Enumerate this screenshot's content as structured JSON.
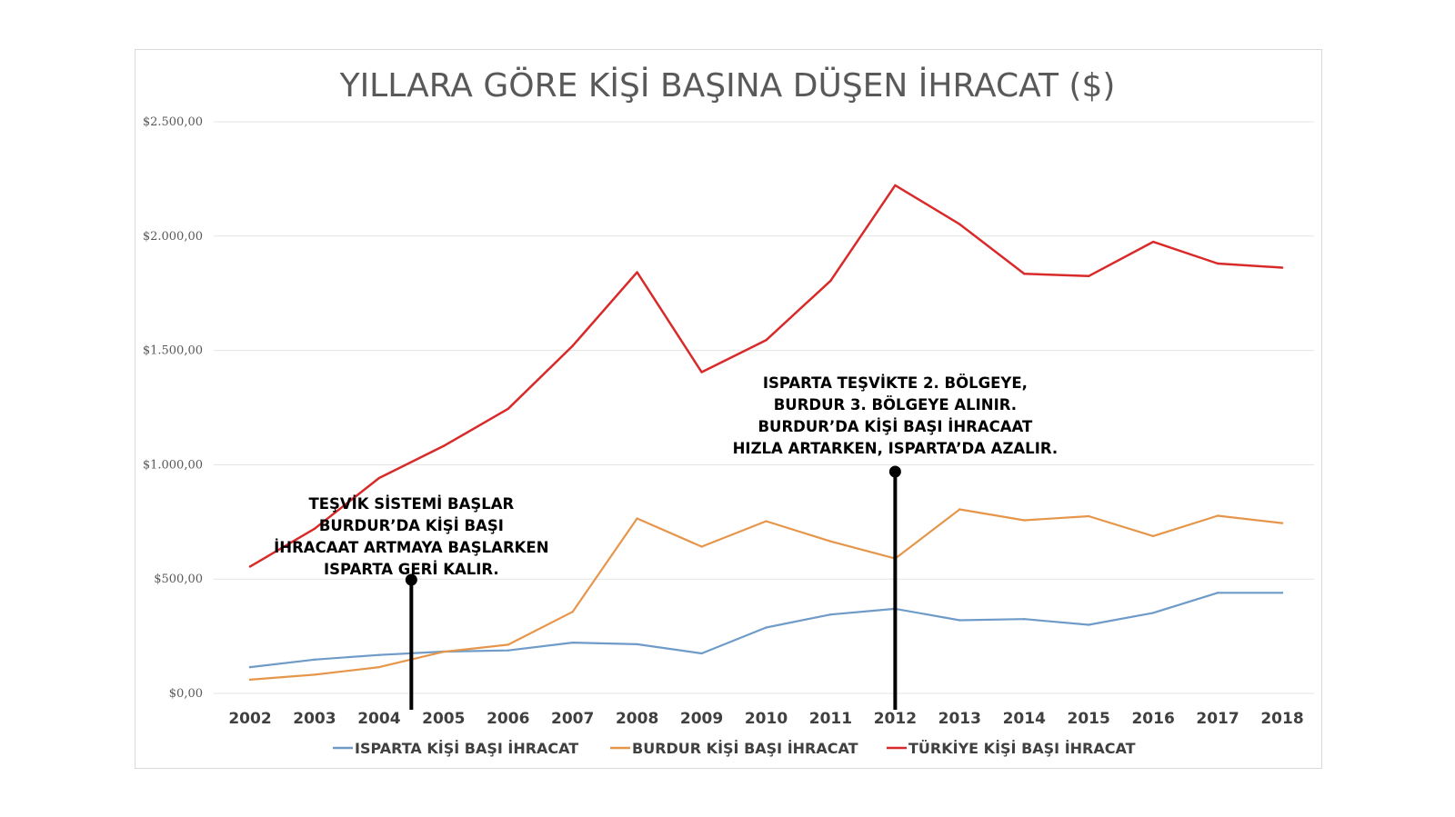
{
  "chart_data": {
    "type": "line",
    "title": "YILLARA GÖRE KİŞİ BAŞINA DÜŞEN İHRACAT ($)",
    "categories": [
      "2002",
      "2003",
      "2004",
      "2005",
      "2006",
      "2007",
      "2008",
      "2009",
      "2010",
      "2011",
      "2012",
      "2013",
      "2014",
      "2015",
      "2016",
      "2017",
      "2018"
    ],
    "ylim": [
      0,
      2500
    ],
    "y_ticks": [
      "$0,00",
      "$500,00",
      "$1.000,00",
      "$1.500,00",
      "$2.000,00",
      "$2.500,00"
    ],
    "y_tick_values": [
      0,
      500,
      1000,
      1500,
      2000,
      2500
    ],
    "grid": true,
    "legend_position": "bottom",
    "series": [
      {
        "name": "ISPARTA KİŞİ BAŞI İHRACAT",
        "color": "#6f9bc8",
        "values": [
          115,
          148,
          168,
          183,
          188,
          222,
          215,
          175,
          288,
          345,
          370,
          320,
          325,
          300,
          352,
          440,
          440
        ]
      },
      {
        "name": "BURDUR KİŞİ BAŞI İHRACAT",
        "color": "#e6964b",
        "values": [
          60,
          82,
          115,
          182,
          213,
          357,
          765,
          642,
          753,
          665,
          590,
          805,
          757,
          775,
          688,
          777,
          745
        ]
      },
      {
        "name": "TÜRKİYE  KİŞİ BAŞI İHRACAT",
        "color": "#d92a2a",
        "values": [
          555,
          720,
          942,
          1082,
          1245,
          1520,
          1842,
          1405,
          1545,
          1805,
          2222,
          2052,
          1835,
          1825,
          1975,
          1880,
          1862
        ]
      }
    ],
    "annotations": [
      {
        "name": "annotation-2004",
        "x": "2004",
        "x_offset": 0.5,
        "lines": [
          "TEŞVİK SİSTEMİ BAŞLAR",
          "BURDUR’DA KİŞİ BAŞI",
          "İHRACAAT ARTMAYA BAŞLARKEN",
          "ISPARTA GERİ KALIR."
        ]
      },
      {
        "name": "annotation-2012",
        "x": "2012",
        "x_offset": 0,
        "lines": [
          "ISPARTA TEŞVİKTE 2. BÖLGEYE,",
          "BURDUR 3. BÖLGEYE ALINIR.",
          "BURDUR’DA KİŞİ BAŞI İHRACAAT",
          "HIZLA ARTARKEN, ISPARTA’DA AZALIR."
        ]
      }
    ]
  }
}
